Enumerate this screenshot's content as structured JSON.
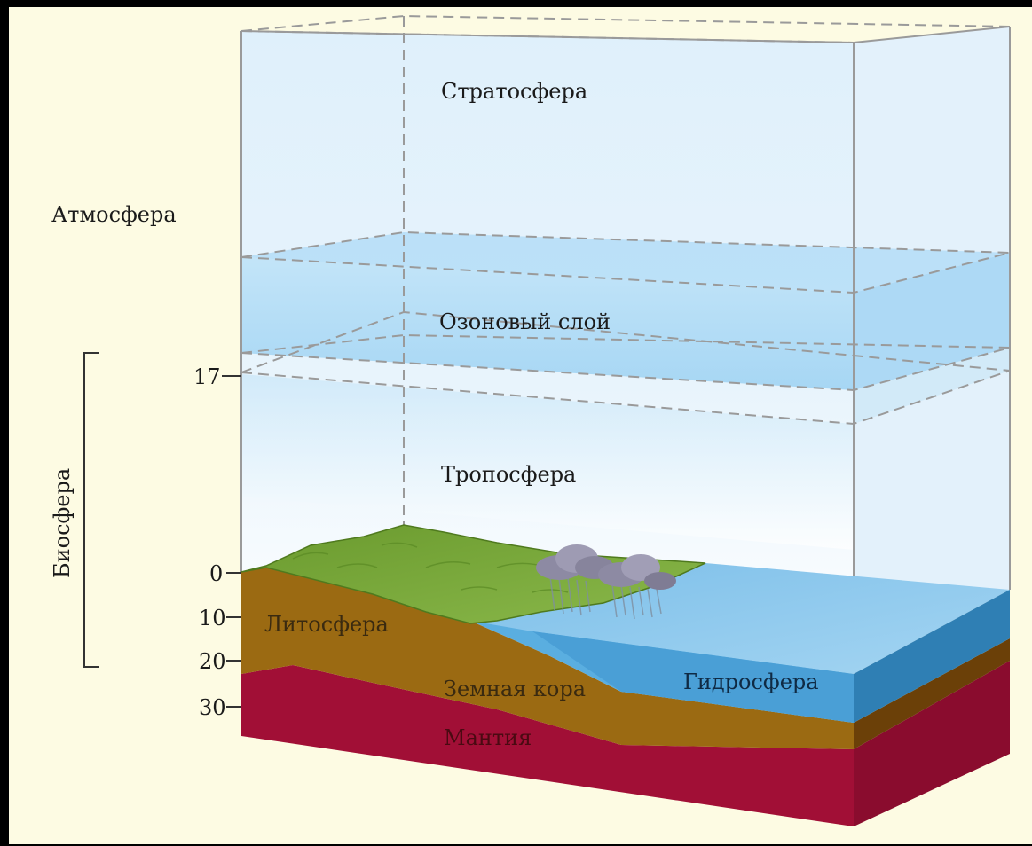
{
  "diagram": {
    "labels": {
      "stratosphere": "Стратосфера",
      "atmosphere": "Атмосфера",
      "ozone_layer": "Озоновый слой",
      "troposphere": "Тропосфера",
      "biosphere": "Биосфера",
      "lithosphere": "Литосфера",
      "earth_crust": "Земная кора",
      "hydrosphere": "Гидросфера",
      "mantle": "Мантия"
    },
    "scale_ticks": [
      "17",
      "0",
      "10",
      "20",
      "30"
    ],
    "colors": {
      "background": "#fdfbe3",
      "sky_top": "#dff0fb",
      "ozone": "#a9d8f5",
      "land": "#6f9e35",
      "soil": "#9b6a12",
      "mantle": "#a10f36",
      "water": "#8fcbef",
      "water_side": "#2f7fb4"
    }
  }
}
